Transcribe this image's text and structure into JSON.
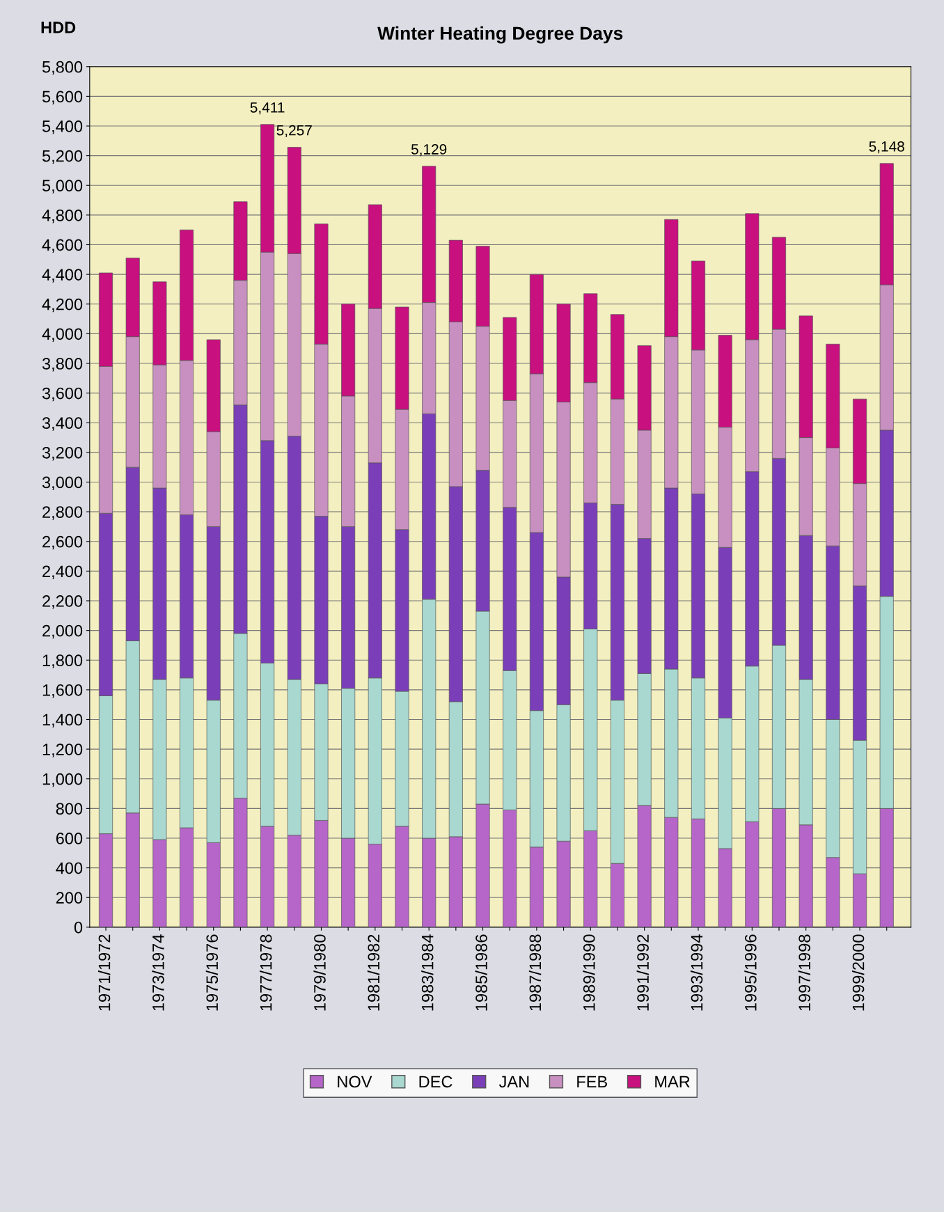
{
  "chart_data": {
    "type": "bar",
    "title": "Winter Heating Degree Days",
    "ylabel": "HDD",
    "stacked": true,
    "categories": [
      "1971/1972",
      null,
      "1973/1974",
      null,
      "1975/1976",
      null,
      "1977/1978",
      null,
      "1979/1980",
      null,
      "1981/1982",
      null,
      "1983/1984",
      null,
      "1985/1986",
      null,
      "1987/1988",
      null,
      "1989/1990",
      null,
      "1991/1992",
      null,
      "1993/1994",
      null,
      "1995/1996",
      null,
      "1997/1998",
      null,
      "1999/2000",
      null
    ],
    "series": [
      {
        "name": "NOV",
        "color": "#b566c8",
        "values": [
          630,
          770,
          590,
          670,
          570,
          870,
          680,
          620,
          720,
          600,
          560,
          680,
          600,
          610,
          830,
          790,
          540,
          580,
          650,
          430,
          820,
          740,
          730,
          530,
          710,
          800,
          690,
          470,
          360,
          800
        ]
      },
      {
        "name": "DEC",
        "color": "#a8d8d0",
        "values": [
          930,
          1160,
          1080,
          1010,
          960,
          1110,
          1100,
          1050,
          920,
          1010,
          1120,
          910,
          1610,
          910,
          1300,
          940,
          920,
          920,
          1360,
          1100,
          890,
          1000,
          950,
          880,
          1050,
          1100,
          980,
          930,
          900,
          1430
        ]
      },
      {
        "name": "JAN",
        "color": "#7a3fb8",
        "values": [
          1230,
          1170,
          1290,
          1100,
          1170,
          1540,
          1500,
          1640,
          1130,
          1090,
          1450,
          1090,
          1250,
          1450,
          950,
          1100,
          1200,
          860,
          850,
          1320,
          910,
          1220,
          1240,
          1150,
          1310,
          1260,
          970,
          1170,
          1040,
          1120
        ]
      },
      {
        "name": "FEB",
        "color": "#c890c0",
        "values": [
          990,
          880,
          830,
          1040,
          640,
          840,
          1270,
          1230,
          1160,
          880,
          1040,
          810,
          750,
          1110,
          970,
          720,
          1070,
          1180,
          810,
          710,
          730,
          1020,
          970,
          810,
          890,
          870,
          660,
          660,
          690,
          980
        ]
      },
      {
        "name": "MAR",
        "color": "#c8107f",
        "values": [
          630,
          530,
          560,
          880,
          620,
          530,
          861,
          717,
          810,
          620,
          700,
          690,
          919,
          550,
          540,
          560,
          670,
          660,
          600,
          570,
          570,
          790,
          600,
          620,
          850,
          620,
          820,
          700,
          570,
          818
        ]
      }
    ],
    "totals": [
      null,
      null,
      null,
      null,
      null,
      null,
      "5,411",
      "5,257",
      null,
      null,
      null,
      null,
      "5,129",
      null,
      null,
      null,
      null,
      null,
      null,
      null,
      null,
      null,
      null,
      null,
      null,
      null,
      null,
      null,
      null,
      "5,148"
    ],
    "ylim": [
      0,
      5800
    ],
    "yticks": [
      0,
      200,
      400,
      600,
      800,
      {
        "value": 1000,
        "label": "1,000"
      },
      {
        "value": 1200,
        "label": "1,200"
      },
      {
        "value": 1400,
        "label": "1,400"
      },
      {
        "value": 1600,
        "label": "1,600"
      },
      {
        "value": 1800,
        "label": "1,800"
      },
      {
        "value": 2000,
        "label": "2,000"
      },
      {
        "value": 2200,
        "label": "2,200"
      },
      {
        "value": 2400,
        "label": "2,400"
      },
      {
        "value": 2600,
        "label": "2,600"
      },
      {
        "value": 2800,
        "label": "2,800"
      },
      {
        "value": 3000,
        "label": "3,000"
      },
      {
        "value": 3200,
        "label": "3,200"
      },
      {
        "value": 3400,
        "label": "3,400"
      },
      {
        "value": 3600,
        "label": "3,600"
      },
      {
        "value": 3800,
        "label": "3,800"
      },
      {
        "value": 4000,
        "label": "4,000"
      },
      {
        "value": 4200,
        "label": "4,200"
      },
      {
        "value": 4400,
        "label": "4,400"
      },
      {
        "value": 4600,
        "label": "4,600"
      },
      {
        "value": 4800,
        "label": "4,800"
      },
      {
        "value": 5000,
        "label": "5,000"
      },
      {
        "value": 5200,
        "label": "5,200"
      },
      {
        "value": 5400,
        "label": "5,400"
      },
      {
        "value": 5600,
        "label": "5,600"
      },
      {
        "value": 5800,
        "label": "5,800"
      }
    ],
    "grid": "y",
    "legend": "bottom"
  }
}
